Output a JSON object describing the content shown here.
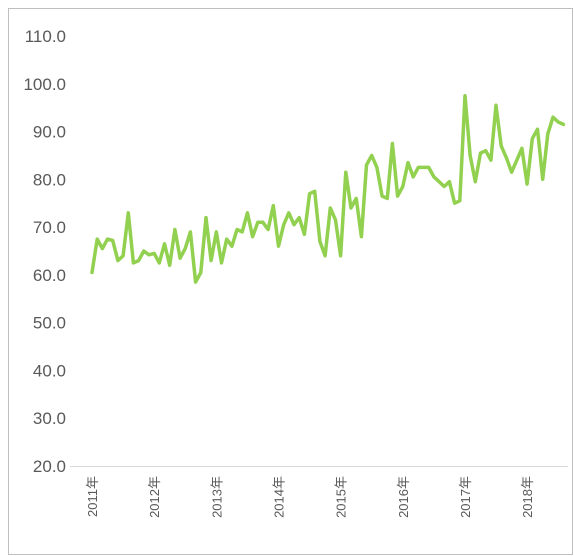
{
  "chart_data": {
    "type": "line",
    "categories": [
      "2011年",
      null,
      null,
      null,
      null,
      null,
      null,
      null,
      null,
      null,
      null,
      null,
      "2012年",
      null,
      null,
      null,
      null,
      null,
      null,
      null,
      null,
      null,
      null,
      null,
      "2013年",
      null,
      null,
      null,
      null,
      null,
      null,
      null,
      null,
      null,
      null,
      null,
      "2014年",
      null,
      null,
      null,
      null,
      null,
      null,
      null,
      null,
      null,
      null,
      null,
      "2015年",
      null,
      null,
      null,
      null,
      null,
      null,
      null,
      null,
      null,
      null,
      null,
      "2016年",
      null,
      null,
      null,
      null,
      null,
      null,
      null,
      null,
      null,
      null,
      null,
      "2017年",
      null,
      null,
      null,
      null,
      null,
      null,
      null,
      null,
      null,
      null,
      null,
      "2018年",
      null,
      null,
      null,
      null,
      null,
      null,
      null
    ],
    "values": [
      60.5,
      67.5,
      65.5,
      67.5,
      67.2,
      63,
      64,
      73,
      62.5,
      63,
      65,
      64.2,
      64.5,
      62.5,
      66.5,
      62,
      69.5,
      63.5,
      65.5,
      69,
      58.5,
      60.5,
      72,
      63,
      69,
      62.5,
      67.5,
      66,
      69.5,
      69,
      73,
      68,
      71,
      71,
      69.5,
      74.5,
      66,
      70.5,
      73,
      70.5,
      72,
      68.5,
      77,
      77.5,
      67,
      64,
      74,
      71.5,
      64,
      81.5,
      74,
      76,
      68,
      83,
      85,
      82.5,
      76.5,
      76,
      87.5,
      76.5,
      78.5,
      83.5,
      80.5,
      82.5,
      82.5,
      82.5,
      80.5,
      79.5,
      78.5,
      79.5,
      75,
      75.5,
      97.5,
      85,
      79.5,
      85.5,
      86,
      84,
      95.5,
      87,
      84.5,
      81.5,
      84,
      86.5,
      79,
      88.5,
      90.5,
      80,
      89.5,
      93,
      92,
      91.5
    ],
    "color": "#92d050",
    "ylim": [
      20,
      110
    ],
    "yticks": [
      {
        "value": 20,
        "label": "20.0"
      },
      {
        "value": 30,
        "label": "30.0"
      },
      {
        "value": 40,
        "label": "40.0"
      },
      {
        "value": 50,
        "label": "50.0"
      },
      {
        "value": 60,
        "label": "60.0"
      },
      {
        "value": 70,
        "label": "70.0"
      },
      {
        "value": 80,
        "label": "80.0"
      },
      {
        "value": 90,
        "label": "90.0"
      },
      {
        "value": 100,
        "label": "100.0"
      },
      {
        "value": 110,
        "label": "110.0"
      }
    ],
    "grid": false
  }
}
